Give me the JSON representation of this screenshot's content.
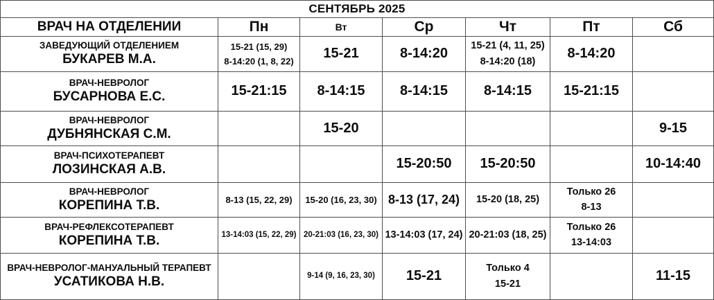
{
  "title": "СЕНТЯБРЬ 2025",
  "table": {
    "doctor_header": "ВРАЧ НА ОТДЕЛЕНИИ",
    "day_headers": [
      "Пн",
      "Вт",
      "Ср",
      "Чт",
      "Пт",
      "Сб"
    ],
    "rows": [
      {
        "position": "ЗАВЕДУЮЩИЙ ОТДЕЛЕНИЕМ",
        "name": "БУКАРЕВ М.А.",
        "cells": [
          {
            "lines": [
              "15-21 (15, 29)",
              "8-14:20 (1, 8, 22)"
            ],
            "size": "sm"
          },
          {
            "lines": [
              "15-21"
            ],
            "size": "xl"
          },
          {
            "lines": [
              "8-14:20"
            ],
            "size": "xl"
          },
          {
            "lines": [
              "15-21 (4, 11, 25)",
              "8-14:20 (18)"
            ],
            "size": "md"
          },
          {
            "lines": [
              "8-14:20"
            ],
            "size": "xl"
          },
          {
            "lines": [],
            "size": "md"
          }
        ]
      },
      {
        "position": "ВРАЧ-НЕВРОЛОГ",
        "name": "БУСАРНОВА Е.С.",
        "cells": [
          {
            "lines": [
              "15-21:15"
            ],
            "size": "xl"
          },
          {
            "lines": [
              "8-14:15"
            ],
            "size": "xl"
          },
          {
            "lines": [
              "8-14:15"
            ],
            "size": "xl"
          },
          {
            "lines": [
              "8-14:15"
            ],
            "size": "xl"
          },
          {
            "lines": [
              "15-21:15"
            ],
            "size": "xl"
          },
          {
            "lines": [],
            "size": "md"
          }
        ]
      },
      {
        "position": "ВРАЧ-НЕВРОЛОГ",
        "name": "ДУБНЯНСКАЯ С.М.",
        "cells": [
          {
            "lines": [],
            "size": "md"
          },
          {
            "lines": [
              "15-20"
            ],
            "size": "xl"
          },
          {
            "lines": [],
            "size": "md"
          },
          {
            "lines": [],
            "size": "md"
          },
          {
            "lines": [],
            "size": "md"
          },
          {
            "lines": [
              "9-15"
            ],
            "size": "xl"
          }
        ]
      },
      {
        "position": "ВРАЧ-ПСИХОТЕРАПЕВТ",
        "name": "ЛОЗИНСКАЯ А.В.",
        "cells": [
          {
            "lines": [],
            "size": "md"
          },
          {
            "lines": [],
            "size": "md"
          },
          {
            "lines": [
              "15-20:50"
            ],
            "size": "xl"
          },
          {
            "lines": [
              "15-20:50"
            ],
            "size": "xl"
          },
          {
            "lines": [],
            "size": "md"
          },
          {
            "lines": [
              "10-14:40"
            ],
            "size": "xl"
          }
        ]
      },
      {
        "position": "ВРАЧ-НЕВРОЛОГ",
        "name": "КОРЕПИНА Т.В.",
        "cells": [
          {
            "lines": [
              "8-13 (15, 22, 29)"
            ],
            "size": "sm"
          },
          {
            "lines": [
              "15-20 (16, 23, 30)"
            ],
            "size": "sm"
          },
          {
            "lines": [
              "8-13 (17, 24)"
            ],
            "size": "lg"
          },
          {
            "lines": [
              "15-20 (18, 25)"
            ],
            "size": "md"
          },
          {
            "lines": [
              "Только 26",
              "8-13"
            ],
            "size": "md"
          },
          {
            "lines": [],
            "size": "md"
          }
        ]
      },
      {
        "position": "ВРАЧ-РЕФЛЕКСОТЕРАПЕВТ",
        "name": "КОРЕПИНА Т.В.",
        "cells": [
          {
            "lines": [
              "13-14:03 (15, 22, 29)"
            ],
            "size": "xs"
          },
          {
            "lines": [
              "20-21:03 (16, 23, 30)"
            ],
            "size": "xs"
          },
          {
            "lines": [
              "13-14:03 (17, 24)"
            ],
            "size": "md"
          },
          {
            "lines": [
              "20-21:03 (18, 25)"
            ],
            "size": "md"
          },
          {
            "lines": [
              "Только 26",
              "13-14:03"
            ],
            "size": "md"
          },
          {
            "lines": [],
            "size": "md"
          }
        ]
      },
      {
        "position": "ВРАЧ-НЕВРОЛОГ-МАНУАЛЬНЫЙ ТЕРАПЕВТ",
        "name": "УСАТИКОВА Н.В.",
        "cells": [
          {
            "lines": [],
            "size": "md"
          },
          {
            "lines": [
              "9-14 (9, 16, 23, 30)"
            ],
            "size": "xs"
          },
          {
            "lines": [
              "15-21"
            ],
            "size": "xl"
          },
          {
            "lines": [
              "Только 4",
              "15-21"
            ],
            "size": "md"
          },
          {
            "lines": [],
            "size": "md"
          },
          {
            "lines": [
              "11-15"
            ],
            "size": "xl"
          }
        ]
      }
    ]
  },
  "colors": {
    "text": "#0d0d0d",
    "border": "#4d4d4d",
    "background": "#ffffff"
  }
}
